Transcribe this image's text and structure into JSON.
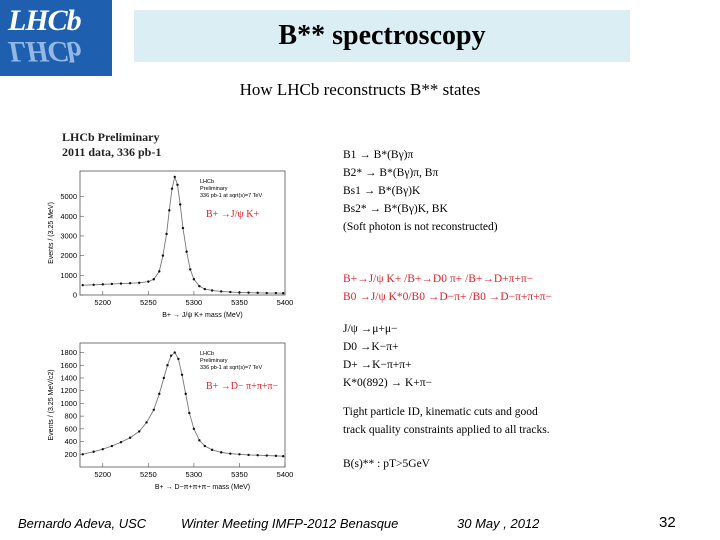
{
  "logo": {
    "text": "LHCb"
  },
  "header": {
    "title": "B** spectroscopy"
  },
  "subtitle": "How LHCb reconstructs B** states",
  "figure": {
    "preliminary": "LHCb Preliminary",
    "dataset": "2011 data, 336 pb-1"
  },
  "chart_data": [
    {
      "type": "line",
      "legend": [
        "LHCb",
        "Preliminary",
        "336 pb-1 at sqrt(s)=7 TeV"
      ],
      "annotation": "B+ →J/ψ K+",
      "xlabel": "B+ → J/ψ K+ mass (MeV)",
      "ylabel": "Events / (3.25 MeV)",
      "xlim": [
        5175,
        5400
      ],
      "ylim": [
        0,
        6300
      ],
      "xticks": [
        5200,
        5250,
        5300,
        5350,
        5400
      ],
      "yticks": [
        0,
        1000,
        2000,
        3000,
        4000,
        5000
      ],
      "x": [
        5178,
        5190,
        5200,
        5210,
        5220,
        5230,
        5240,
        5250,
        5256,
        5262,
        5266,
        5270,
        5273,
        5276,
        5279,
        5282,
        5285,
        5288,
        5292,
        5296,
        5300,
        5306,
        5312,
        5320,
        5330,
        5340,
        5350,
        5360,
        5370,
        5380,
        5390,
        5398
      ],
      "y": [
        500,
        520,
        540,
        560,
        580,
        600,
        620,
        680,
        800,
        1200,
        2000,
        3100,
        4300,
        5400,
        6000,
        5600,
        4600,
        3400,
        2200,
        1300,
        800,
        450,
        300,
        230,
        180,
        150,
        130,
        120,
        110,
        100,
        100,
        90
      ]
    },
    {
      "type": "line",
      "legend": [
        "LHCb",
        "Preliminary",
        "336 pb-1 at sqrt(s)=7 TeV"
      ],
      "annotation": "B+ →D− π+π+π−",
      "xlabel": "B+ → D−π+π+π− mass (MeV)",
      "ylabel": "Events / (3.25 MeV/c2)",
      "xlim": [
        5175,
        5400
      ],
      "ylim": [
        0,
        1950
      ],
      "xticks": [
        5200,
        5250,
        5300,
        5350,
        5400
      ],
      "yticks": [
        200,
        400,
        600,
        800,
        1000,
        1200,
        1400,
        1600,
        1800
      ],
      "x": [
        5178,
        5190,
        5200,
        5210,
        5220,
        5230,
        5240,
        5248,
        5256,
        5262,
        5267,
        5271,
        5275,
        5279,
        5283,
        5287,
        5291,
        5295,
        5300,
        5306,
        5312,
        5320,
        5330,
        5340,
        5350,
        5360,
        5370,
        5380,
        5390,
        5398
      ],
      "y": [
        200,
        240,
        280,
        330,
        390,
        460,
        560,
        700,
        900,
        1150,
        1400,
        1600,
        1750,
        1800,
        1700,
        1450,
        1150,
        850,
        600,
        420,
        330,
        270,
        230,
        210,
        200,
        190,
        185,
        180,
        175,
        170
      ]
    }
  ],
  "decays": [
    {
      "text": "B1 → B*(Bγ)π",
      "red": false
    },
    {
      "text": "B2* → B*(Bγ)π, Bπ",
      "red": false
    },
    {
      "text": "Bs1 → B*(Bγ)K",
      "red": false
    },
    {
      "text": "Bs2* → B*(Bγ)K, BK",
      "red": false
    },
    {
      "text": "(Soft photon is not reconstructed)",
      "red": false
    }
  ],
  "channels": [
    {
      "text": "B+→J/ψ K+ /B+→D0 π+ /B+→D+π+π−",
      "red": true
    },
    {
      "text": "B0 →J/ψ K*0/B0 →D−π+ /B0 →D−π+π+π−",
      "red": true
    }
  ],
  "daughters": [
    {
      "text": "J/ψ →μ+μ−",
      "red": false
    },
    {
      "text": "D0 →K−π+",
      "red": false
    },
    {
      "text": "D+ →K−π+π+",
      "red": false
    },
    {
      "text": "K*0(892) → K+π−",
      "red": false
    }
  ],
  "notes": [
    "Tight particle ID, kinematic cuts and good",
    "track quality constraints applied to all tracks."
  ],
  "cut": "B(s)** : pT>5GeV",
  "footer": {
    "author": "Bernardo Adeva, USC",
    "meeting": "Winter Meeting IMFP-2012 Benasque",
    "date": "30 May , 2012",
    "page": "32"
  }
}
